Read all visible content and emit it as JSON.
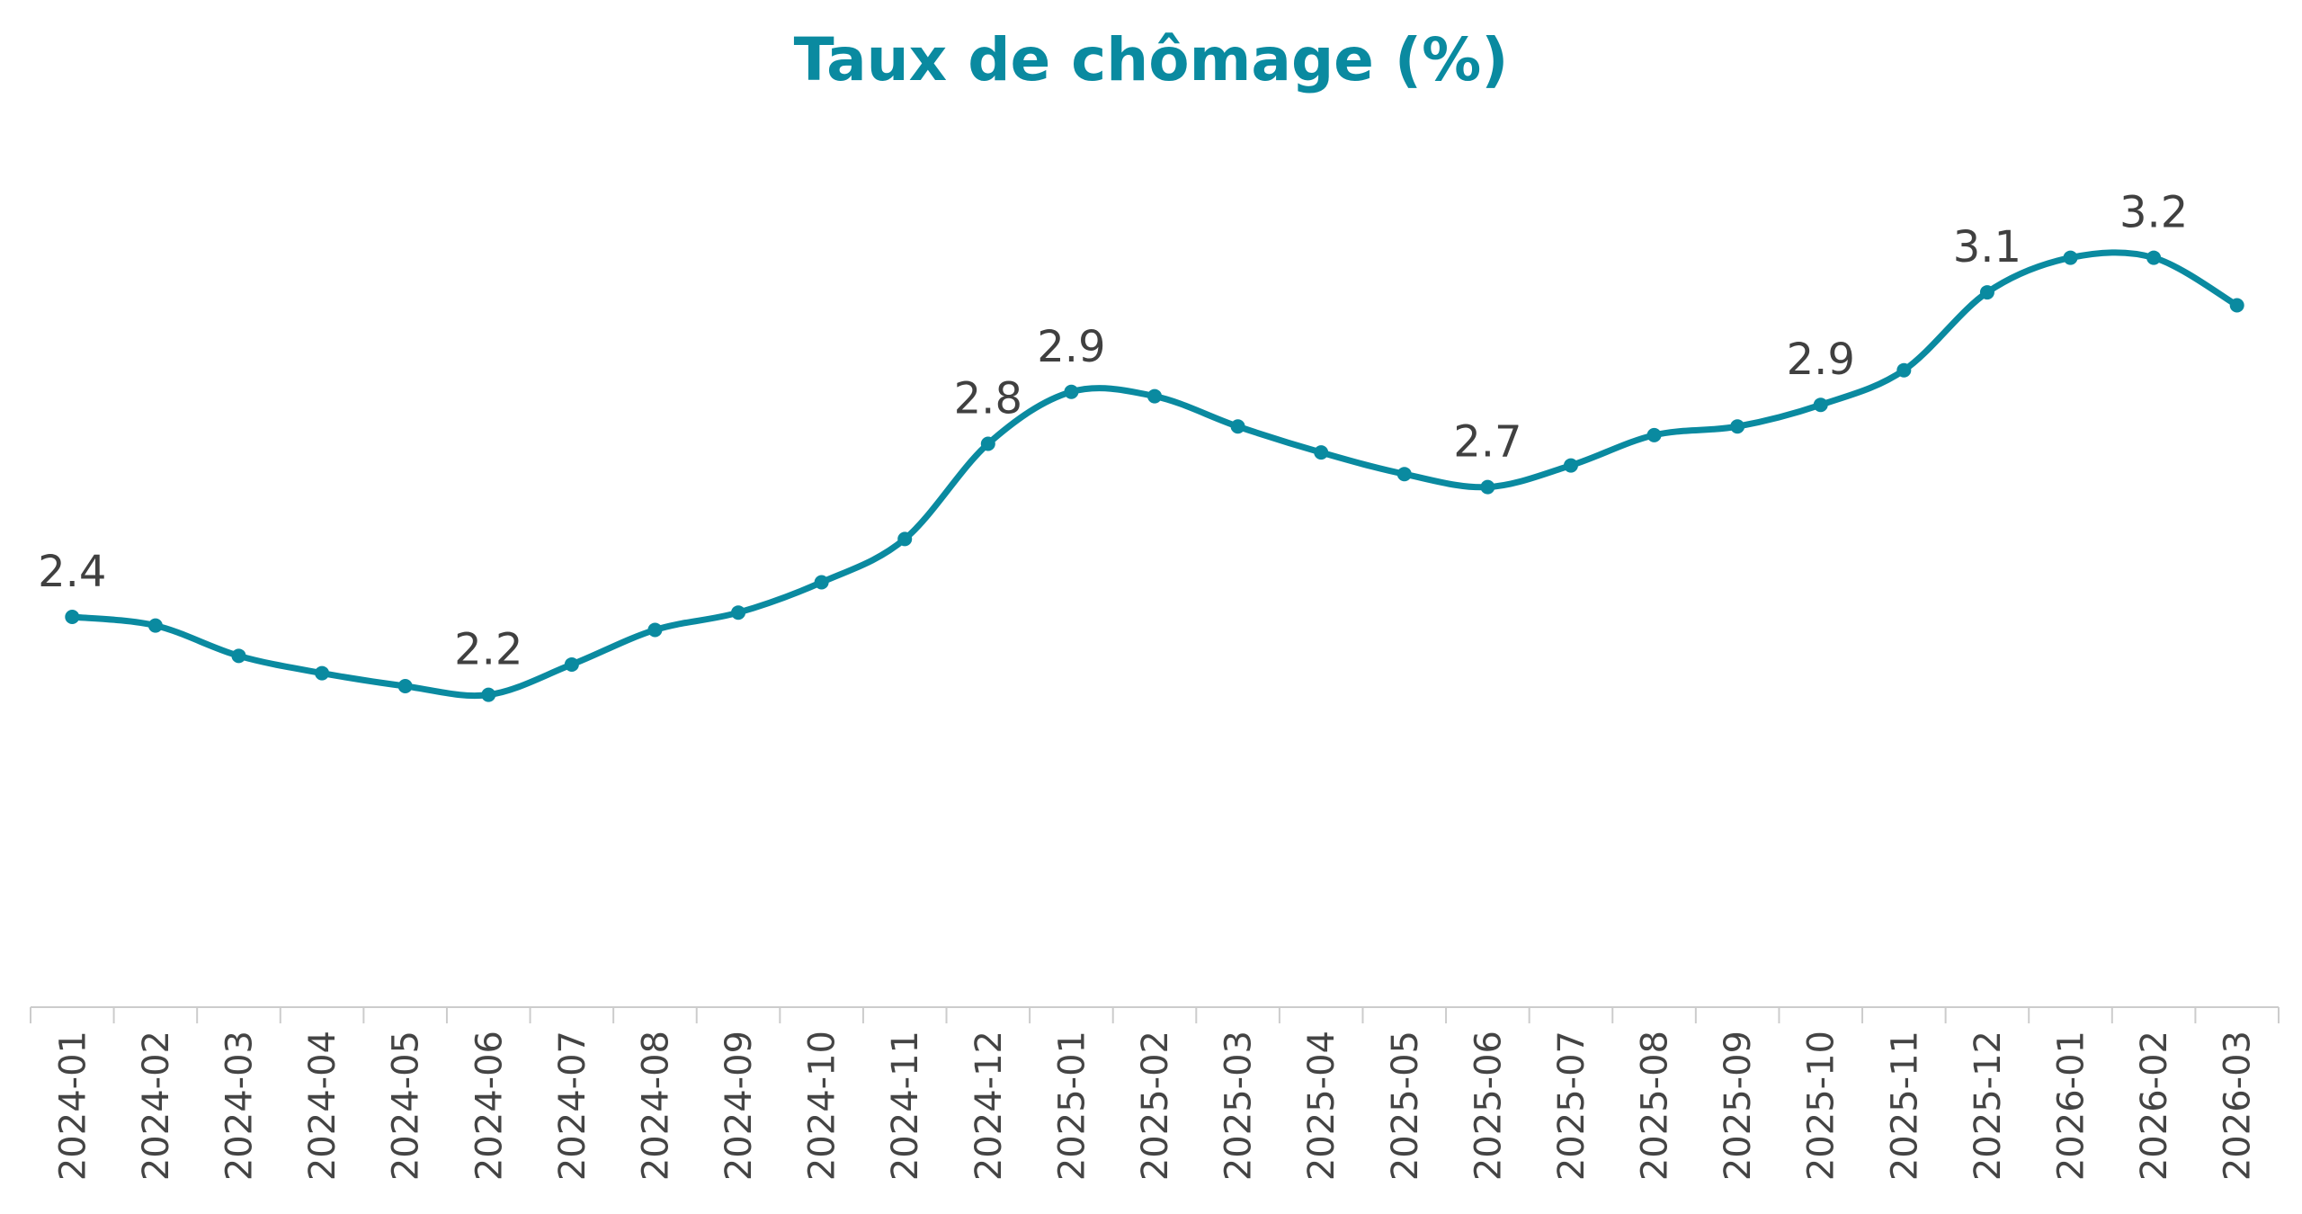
{
  "chart_data": {
    "type": "line",
    "title": "Taux de chômage (%)",
    "xlabel": "",
    "ylabel": "",
    "categories": [
      "2024-01",
      "2024-02",
      "2024-03",
      "2024-04",
      "2024-05",
      "2024-06",
      "2024-07",
      "2024-08",
      "2024-09",
      "2024-10",
      "2024-11",
      "2024-12",
      "2025-01",
      "2025-02",
      "2025-03",
      "2025-04",
      "2025-05",
      "2025-06",
      "2025-07",
      "2025-08",
      "2025-09",
      "2025-10",
      "2025-11",
      "2025-12",
      "2026-01",
      "2026-02",
      "2026-03"
    ],
    "series": [
      {
        "values": [
          2.4,
          2.38,
          2.31,
          2.27,
          2.24,
          2.22,
          2.29,
          2.37,
          2.41,
          2.48,
          2.58,
          2.8,
          2.92,
          2.91,
          2.84,
          2.78,
          2.73,
          2.7,
          2.75,
          2.82,
          2.84,
          2.89,
          2.97,
          3.15,
          3.23,
          3.23,
          3.12
        ],
        "labels": [
          "2.4",
          "",
          "",
          "",
          "",
          "2.2",
          "",
          "",
          "",
          "",
          "",
          "2.8",
          "2.9",
          "",
          "",
          "",
          "",
          "2.7",
          "",
          "",
          "",
          "2.9",
          "",
          "3.1",
          "",
          "3.2",
          ""
        ]
      }
    ],
    "ylim": [
      1.5,
      3.5
    ],
    "grid": false,
    "legend": "none",
    "colors": {
      "line": "#0a8aa0",
      "title": "#0a8aa0",
      "axis": "#cccccc",
      "text": "#404040"
    }
  }
}
